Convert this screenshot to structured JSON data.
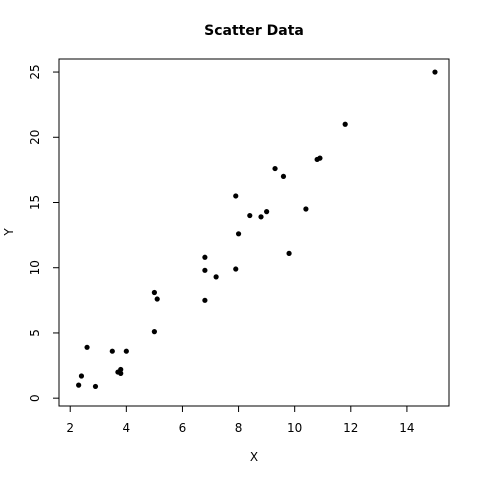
{
  "chart_data": {
    "type": "scatter",
    "title": "Scatter Data",
    "xlabel": "X",
    "ylabel": "Y",
    "xlim": [
      1.6,
      15.5
    ],
    "ylim": [
      -0.6,
      26.0
    ],
    "xticks": [
      2,
      4,
      6,
      8,
      10,
      12,
      14
    ],
    "yticks": [
      0,
      5,
      10,
      15,
      20,
      25
    ],
    "grid": false,
    "legend": "none",
    "point_color": "#000000",
    "points": [
      {
        "x": 2.3,
        "y": 1.0
      },
      {
        "x": 2.4,
        "y": 1.7
      },
      {
        "x": 2.6,
        "y": 3.9
      },
      {
        "x": 2.9,
        "y": 0.9
      },
      {
        "x": 3.5,
        "y": 3.6
      },
      {
        "x": 3.7,
        "y": 2.0
      },
      {
        "x": 3.8,
        "y": 1.9
      },
      {
        "x": 3.8,
        "y": 2.2
      },
      {
        "x": 4.0,
        "y": 3.6
      },
      {
        "x": 5.0,
        "y": 5.1
      },
      {
        "x": 5.0,
        "y": 8.1
      },
      {
        "x": 5.1,
        "y": 7.6
      },
      {
        "x": 6.8,
        "y": 10.8
      },
      {
        "x": 6.8,
        "y": 9.8
      },
      {
        "x": 6.8,
        "y": 7.5
      },
      {
        "x": 7.2,
        "y": 9.3
      },
      {
        "x": 7.9,
        "y": 15.5
      },
      {
        "x": 7.9,
        "y": 9.9
      },
      {
        "x": 8.0,
        "y": 12.6
      },
      {
        "x": 8.4,
        "y": 14.0
      },
      {
        "x": 8.8,
        "y": 13.9
      },
      {
        "x": 9.0,
        "y": 14.3
      },
      {
        "x": 9.3,
        "y": 17.6
      },
      {
        "x": 9.6,
        "y": 17.0
      },
      {
        "x": 9.8,
        "y": 11.1
      },
      {
        "x": 10.4,
        "y": 14.5
      },
      {
        "x": 10.8,
        "y": 18.3
      },
      {
        "x": 10.9,
        "y": 18.4
      },
      {
        "x": 11.8,
        "y": 21.0
      },
      {
        "x": 15.0,
        "y": 25.0
      }
    ]
  }
}
